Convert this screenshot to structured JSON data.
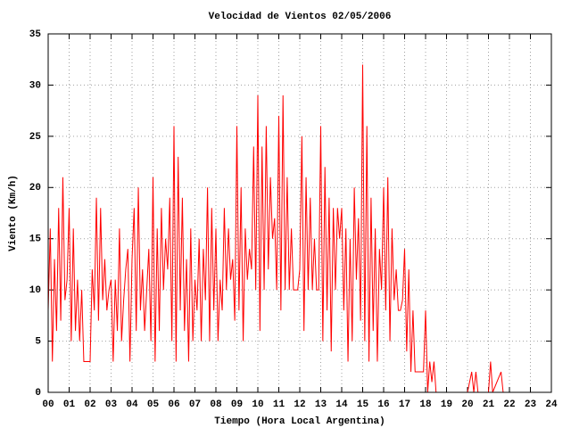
{
  "chart_data": {
    "type": "line",
    "title": "Velocidad de Vientos 02/05/2006",
    "xlabel": "Tiempo (Hora Local Argentina)",
    "ylabel": "Viento (Km/h)",
    "color": "#ff0000",
    "grid": true,
    "xlim": [
      0,
      24
    ],
    "ylim": [
      0,
      35
    ],
    "yticks": [
      0,
      5,
      10,
      15,
      20,
      25,
      30,
      35
    ],
    "xticks": [
      {
        "value": 0,
        "label": "00"
      },
      {
        "value": 1,
        "label": "01"
      },
      {
        "value": 2,
        "label": "02"
      },
      {
        "value": 3,
        "label": "03"
      },
      {
        "value": 4,
        "label": "04"
      },
      {
        "value": 5,
        "label": "05"
      },
      {
        "value": 6,
        "label": "06"
      },
      {
        "value": 7,
        "label": "07"
      },
      {
        "value": 8,
        "label": "08"
      },
      {
        "value": 9,
        "label": "09"
      },
      {
        "value": 10,
        "label": "10"
      },
      {
        "value": 11,
        "label": "11"
      },
      {
        "value": 12,
        "label": "12"
      },
      {
        "value": 13,
        "label": "13"
      },
      {
        "value": 14,
        "label": "14"
      },
      {
        "value": 15,
        "label": "15"
      },
      {
        "value": 16,
        "label": "16"
      },
      {
        "value": 17,
        "label": "17"
      },
      {
        "value": 18,
        "label": "18"
      },
      {
        "value": 19,
        "label": "19"
      },
      {
        "value": 20,
        "label": "20"
      },
      {
        "value": 21,
        "label": "21"
      },
      {
        "value": 22,
        "label": "22"
      },
      {
        "value": 23,
        "label": "23"
      },
      {
        "value": 24,
        "label": "24"
      }
    ],
    "x": [
      0,
      0.1,
      0.2,
      0.3,
      0.4,
      0.5,
      0.6,
      0.7,
      0.8,
      0.9,
      1,
      1.1,
      1.2,
      1.3,
      1.4,
      1.5,
      1.6,
      1.7,
      1.8,
      1.9,
      2,
      2.1,
      2.2,
      2.3,
      2.4,
      2.5,
      2.6,
      2.7,
      2.8,
      2.9,
      3,
      3.1,
      3.2,
      3.3,
      3.4,
      3.5,
      3.6,
      3.7,
      3.8,
      3.9,
      4,
      4.1,
      4.2,
      4.3,
      4.4,
      4.5,
      4.6,
      4.7,
      4.8,
      4.9,
      5,
      5.1,
      5.2,
      5.3,
      5.4,
      5.5,
      5.6,
      5.7,
      5.8,
      5.9,
      6,
      6.1,
      6.2,
      6.3,
      6.4,
      6.5,
      6.6,
      6.7,
      6.8,
      6.9,
      7,
      7.1,
      7.2,
      7.3,
      7.4,
      7.5,
      7.6,
      7.7,
      7.8,
      7.9,
      8,
      8.1,
      8.2,
      8.3,
      8.4,
      8.5,
      8.6,
      8.7,
      8.8,
      8.9,
      9,
      9.1,
      9.2,
      9.3,
      9.4,
      9.5,
      9.6,
      9.7,
      9.8,
      9.9,
      10,
      10.1,
      10.2,
      10.3,
      10.4,
      10.5,
      10.6,
      10.7,
      10.8,
      10.9,
      11,
      11.1,
      11.2,
      11.3,
      11.4,
      11.5,
      11.6,
      11.7,
      11.8,
      11.9,
      12,
      12.1,
      12.2,
      12.3,
      12.4,
      12.5,
      12.6,
      12.7,
      12.8,
      12.9,
      13,
      13.1,
      13.2,
      13.3,
      13.4,
      13.5,
      13.6,
      13.7,
      13.8,
      13.9,
      14,
      14.1,
      14.2,
      14.3,
      14.4,
      14.5,
      14.6,
      14.7,
      14.8,
      14.9,
      15,
      15.1,
      15.2,
      15.3,
      15.4,
      15.5,
      15.6,
      15.7,
      15.8,
      15.9,
      16,
      16.1,
      16.2,
      16.3,
      16.4,
      16.5,
      16.6,
      16.7,
      16.8,
      16.9,
      17,
      17.1,
      17.2,
      17.3,
      17.4,
      17.5,
      17.6,
      17.7,
      17.8,
      17.9,
      18,
      18.1,
      18.2,
      18.3,
      18.4,
      18.5,
      19,
      20,
      20.2,
      20.3,
      20.4,
      20.5,
      21,
      21.1,
      21.2,
      21.6,
      21.7
    ],
    "values": [
      8,
      16,
      3,
      13,
      6,
      18,
      7,
      21,
      9,
      11,
      18,
      5,
      16,
      6,
      11,
      5,
      10,
      3,
      3,
      3,
      3,
      12,
      8,
      19,
      7,
      18,
      9,
      13,
      8,
      10,
      11,
      3,
      11,
      6,
      16,
      5,
      9,
      12,
      14,
      3,
      13,
      18,
      6,
      20,
      8,
      12,
      6,
      10,
      14,
      5,
      21,
      3,
      16,
      6,
      18,
      10,
      15,
      12,
      19,
      5,
      26,
      3,
      23,
      8,
      19,
      6,
      13,
      3,
      16,
      5,
      11,
      8,
      15,
      5,
      14,
      9,
      20,
      5,
      18,
      8,
      16,
      5,
      11,
      8,
      18,
      10,
      16,
      11,
      13,
      7,
      26,
      8,
      20,
      5,
      16,
      11,
      14,
      12,
      24,
      10,
      29,
      6,
      24,
      10,
      26,
      12,
      21,
      15,
      17,
      10,
      27,
      8,
      29,
      10,
      21,
      10,
      16,
      10,
      10,
      10,
      12,
      25,
      6,
      21,
      10,
      19,
      10,
      15,
      10,
      10,
      26,
      5,
      22,
      8,
      19,
      4,
      18,
      10,
      18,
      15,
      18,
      8,
      16,
      3,
      15,
      5,
      20,
      11,
      17,
      7,
      32,
      5,
      26,
      3,
      19,
      6,
      16,
      3,
      14,
      10,
      20,
      8,
      21,
      5,
      16,
      9,
      12,
      8,
      8,
      9,
      14,
      4,
      12,
      2,
      8,
      2,
      2,
      2,
      2,
      2,
      8,
      0,
      3,
      1,
      3,
      0,
      0,
      0,
      2,
      0,
      2,
      0,
      0,
      3,
      0,
      2,
      0
    ]
  }
}
